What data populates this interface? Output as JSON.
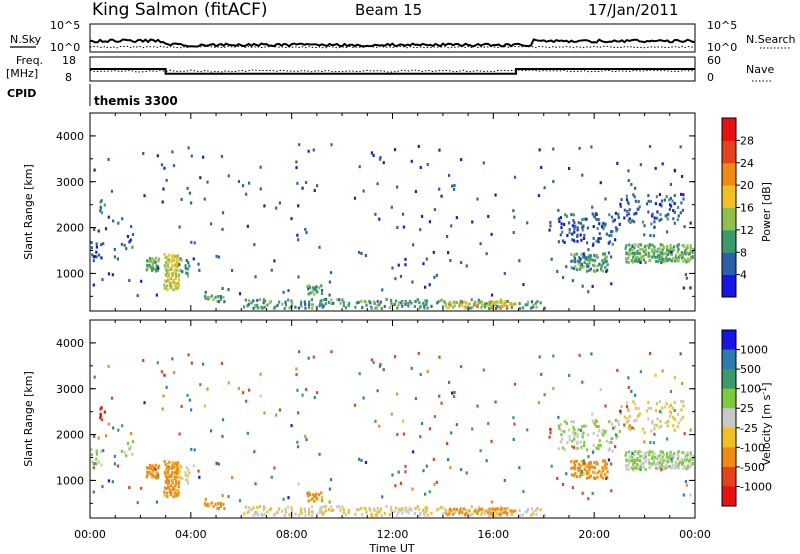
{
  "header": {
    "station": "King Salmon (fitACF)",
    "beam": "Beam 15",
    "date": "17/Jan/2011"
  },
  "status_panel": {
    "nsky_label": "N.Sky",
    "nsearch_label": "N.Search",
    "nsky_ticks": [
      "10^5",
      "10^0"
    ],
    "nsky_right_ticks": [
      "10^5",
      "10^0"
    ],
    "freq_label_1": "Freq.",
    "freq_label_2": "[MHz]",
    "freq_ticks": [
      "18",
      "8"
    ],
    "nave_label": "Nave",
    "nave_ticks": [
      "60",
      "0"
    ],
    "cpid_label": "CPID",
    "cpid_name": "themis 3300"
  },
  "axes": {
    "ylabel": "Slant Range [km]",
    "xlabel": "Time UT",
    "x_ticks": [
      "00:00",
      "04:00",
      "08:00",
      "12:00",
      "16:00",
      "20:00",
      "00:00"
    ],
    "y_ticks": [
      "1000",
      "2000",
      "3000",
      "4000"
    ]
  },
  "power_colorbar": {
    "label": "Power [dB]",
    "ticks": [
      "4",
      "8",
      "12",
      "16",
      "20",
      "24",
      "28"
    ],
    "colors": [
      "#1515e8",
      "#2c5fa8",
      "#3a9a6a",
      "#8fc04a",
      "#f0c020",
      "#f08a10",
      "#e8401a",
      "#e81010"
    ]
  },
  "velocity_colorbar": {
    "label": "Velocity [m s",
    "label_sup": "-1",
    "label_end": "]",
    "ticks": [
      "1000",
      "500",
      "100",
      "25",
      "-25",
      "-100",
      "-500",
      "-1000"
    ],
    "colors": [
      "#1515e8",
      "#2e7ab0",
      "#3a9a6a",
      "#7acc3a",
      "#c8c8c8",
      "#f0c020",
      "#f08a10",
      "#e8401a",
      "#e81010"
    ]
  },
  "chart_data": {
    "type": "heatmap",
    "title": "King Salmon (fitACF) Beam 15 17/Jan/2011",
    "xlabel": "Time UT",
    "ylabel": "Slant Range [km]",
    "x_range_hours": [
      0,
      24
    ],
    "y_range_km": [
      180,
      4500
    ],
    "freq_mhz": [
      [
        0,
        13
      ],
      [
        3.0,
        13
      ],
      [
        3.0,
        11
      ],
      [
        16.9,
        11
      ],
      [
        16.9,
        13
      ],
      [
        24,
        13
      ]
    ],
    "scatter_regions": [
      {
        "t": [
          0.3,
          0.6
        ],
        "r": [
          2200,
          2600
        ],
        "p": 6,
        "v": -1000,
        "d": 0.4
      },
      {
        "t": [
          0.0,
          0.5
        ],
        "r": [
          1300,
          1700
        ],
        "p": 5,
        "v": 25,
        "d": 0.3
      },
      {
        "t": [
          1.2,
          1.7
        ],
        "r": [
          1500,
          1900
        ],
        "p": 5,
        "v": 25,
        "d": 0.3
      },
      {
        "t": [
          2.2,
          2.7
        ],
        "r": [
          1000,
          1300
        ],
        "p": 12,
        "v": -100,
        "d": 0.9
      },
      {
        "t": [
          2.9,
          3.5
        ],
        "r": [
          600,
          1400
        ],
        "p": 16,
        "v": -100,
        "d": 0.95
      },
      {
        "t": [
          3.5,
          3.9
        ],
        "r": [
          900,
          1300
        ],
        "p": 10,
        "v": -25,
        "d": 0.5
      },
      {
        "t": [
          4.5,
          5.3
        ],
        "r": [
          350,
          500
        ],
        "p": 10,
        "v": -100,
        "d": 0.8
      },
      {
        "t": [
          8.5,
          9.2
        ],
        "r": [
          500,
          700
        ],
        "p": 10,
        "v": -100,
        "d": 0.8
      },
      {
        "t": [
          6.0,
          18.0
        ],
        "r": [
          200,
          400
        ],
        "p": 10,
        "v": -25,
        "d": 0.5
      },
      {
        "t": [
          14.0,
          17.0
        ],
        "r": [
          200,
          350
        ],
        "p": 18,
        "v": -100,
        "d": 0.6
      },
      {
        "t": [
          19.0,
          20.5
        ],
        "r": [
          1000,
          1400
        ],
        "p": 10,
        "v": -100,
        "d": 0.7
      },
      {
        "t": [
          21.2,
          23.9
        ],
        "r": [
          1200,
          1600
        ],
        "p": 12,
        "v": 25,
        "d": 0.85
      },
      {
        "t": [
          18.5,
          21.0
        ],
        "r": [
          1600,
          2300
        ],
        "p": 6,
        "v": 25,
        "d": 0.25
      },
      {
        "t": [
          21.0,
          23.5
        ],
        "r": [
          2000,
          2700
        ],
        "p": 6,
        "v": -25,
        "d": 0.2
      }
    ]
  }
}
